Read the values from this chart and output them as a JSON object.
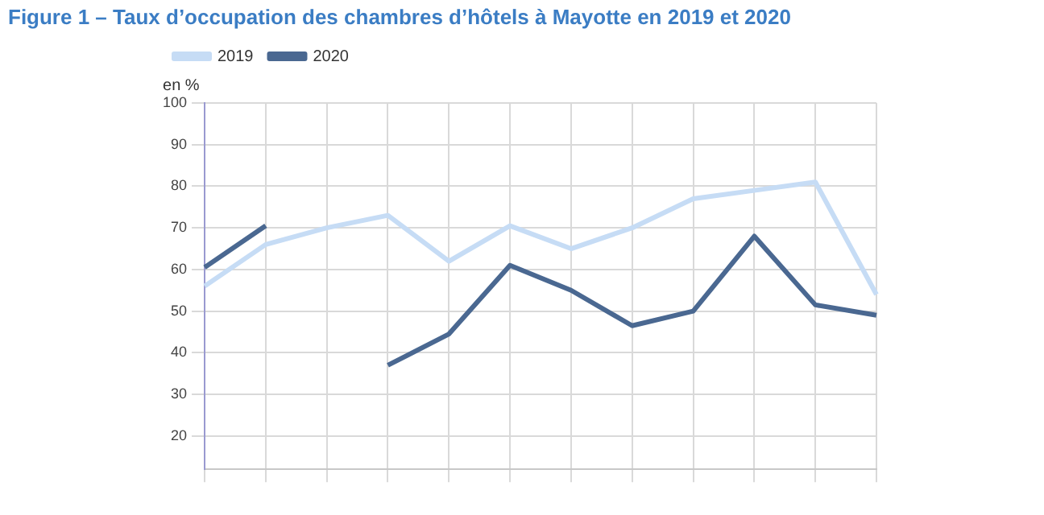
{
  "chart_data": {
    "type": "line",
    "title": "Figure 1 – Taux d’occupation des chambres d’hôtels à Mayotte en 2019 et 2020",
    "ylabel": "en %",
    "categories": [
      null,
      null,
      null,
      null,
      null,
      null,
      null,
      null,
      null,
      null,
      null,
      null
    ],
    "series": [
      {
        "name": "2019",
        "color": "#c6dcf5",
        "values": [
          56,
          66,
          70,
          73,
          62,
          70.5,
          65,
          70,
          77,
          79,
          81,
          54
        ]
      },
      {
        "name": "2020",
        "color": "#4a6891",
        "values": [
          60.5,
          70.5,
          null,
          37,
          44.5,
          61,
          55,
          46.5,
          50,
          68,
          51.5,
          49
        ]
      }
    ],
    "ylim": [
      12,
      100
    ],
    "yticks": [
      20,
      30,
      40,
      50,
      60,
      70,
      80,
      90,
      100
    ],
    "grid": true,
    "legend": "top left",
    "marker": "none",
    "line_style": "solid"
  }
}
